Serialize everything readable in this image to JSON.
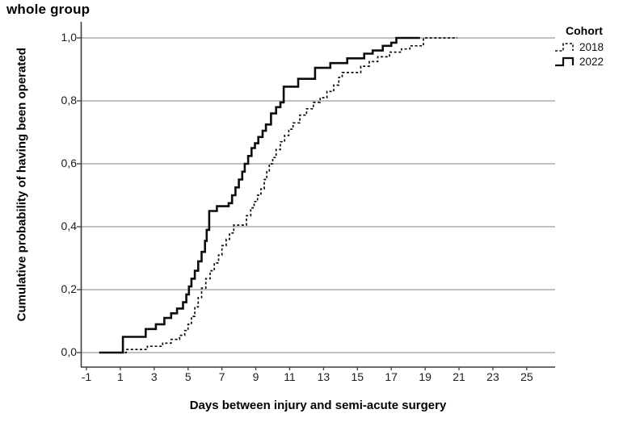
{
  "title": "whole group",
  "legend": {
    "title": "Cohort"
  },
  "chart_data": {
    "type": "line",
    "subtype": "cumulative-step (Kaplan-Meier style)",
    "title": "whole group",
    "xlabel": "Days between injury and semi-acute surgery",
    "ylabel": "Cumulative probability of having been operated",
    "x_ticks": [
      -1,
      1,
      3,
      5,
      7,
      9,
      11,
      13,
      15,
      17,
      19,
      21,
      23,
      25
    ],
    "y_ticks": [
      0,
      0.2,
      0.4,
      0.6,
      0.8,
      1.0
    ],
    "y_tick_labels": [
      "0,0",
      "0,2",
      "0,4",
      "0,6",
      "0,8",
      "1,0"
    ],
    "xlim": [
      -1.35,
      26.7
    ],
    "ylim": [
      0,
      1
    ],
    "grid": "horizontal",
    "legend_position": "top-right",
    "legend_title": "Cohort",
    "colors": {
      "grid": "#9b9b9b",
      "axis": "#3d3d3d",
      "curve": "#0d0d0d"
    },
    "series": [
      {
        "name": "2018",
        "style": "dashed",
        "color": "#0d0d0d",
        "end_day": 20.9,
        "points": [
          [
            1.0,
            0.0
          ],
          [
            1.35,
            0.01
          ],
          [
            2.6,
            0.02
          ],
          [
            3.5,
            0.03
          ],
          [
            4.0,
            0.042
          ],
          [
            4.5,
            0.055
          ],
          [
            4.8,
            0.07
          ],
          [
            5.0,
            0.09
          ],
          [
            5.2,
            0.115
          ],
          [
            5.4,
            0.145
          ],
          [
            5.6,
            0.175
          ],
          [
            5.8,
            0.205
          ],
          [
            6.05,
            0.235
          ],
          [
            6.3,
            0.26
          ],
          [
            6.55,
            0.285
          ],
          [
            6.8,
            0.31
          ],
          [
            7.0,
            0.34
          ],
          [
            7.25,
            0.36
          ],
          [
            7.45,
            0.38
          ],
          [
            7.7,
            0.405
          ],
          [
            8.45,
            0.435
          ],
          [
            8.7,
            0.46
          ],
          [
            8.9,
            0.48
          ],
          [
            9.1,
            0.5
          ],
          [
            9.3,
            0.52
          ],
          [
            9.5,
            0.55
          ],
          [
            9.65,
            0.575
          ],
          [
            9.8,
            0.6
          ],
          [
            10.0,
            0.62
          ],
          [
            10.2,
            0.645
          ],
          [
            10.45,
            0.67
          ],
          [
            10.7,
            0.69
          ],
          [
            10.95,
            0.71
          ],
          [
            11.2,
            0.73
          ],
          [
            11.6,
            0.755
          ],
          [
            12.0,
            0.775
          ],
          [
            12.4,
            0.795
          ],
          [
            12.8,
            0.81
          ],
          [
            13.2,
            0.83
          ],
          [
            13.6,
            0.85
          ],
          [
            13.9,
            0.875
          ],
          [
            14.1,
            0.89
          ],
          [
            15.2,
            0.91
          ],
          [
            15.7,
            0.925
          ],
          [
            16.2,
            0.94
          ],
          [
            16.9,
            0.955
          ],
          [
            17.6,
            0.965
          ],
          [
            18.1,
            0.975
          ],
          [
            18.9,
            1.0
          ]
        ]
      },
      {
        "name": "2022",
        "style": "solid",
        "color": "#0d0d0d",
        "end_day": 18.7,
        "points": [
          [
            -0.25,
            0.0
          ],
          [
            1.15,
            0.05
          ],
          [
            2.5,
            0.075
          ],
          [
            3.1,
            0.09
          ],
          [
            3.6,
            0.11
          ],
          [
            4.0,
            0.125
          ],
          [
            4.35,
            0.14
          ],
          [
            4.7,
            0.16
          ],
          [
            4.9,
            0.185
          ],
          [
            5.05,
            0.21
          ],
          [
            5.2,
            0.235
          ],
          [
            5.4,
            0.26
          ],
          [
            5.6,
            0.29
          ],
          [
            5.8,
            0.32
          ],
          [
            6.0,
            0.355
          ],
          [
            6.1,
            0.39
          ],
          [
            6.25,
            0.45
          ],
          [
            6.7,
            0.465
          ],
          [
            7.4,
            0.475
          ],
          [
            7.6,
            0.5
          ],
          [
            7.8,
            0.525
          ],
          [
            8.0,
            0.55
          ],
          [
            8.2,
            0.575
          ],
          [
            8.35,
            0.6
          ],
          [
            8.55,
            0.625
          ],
          [
            8.75,
            0.65
          ],
          [
            8.95,
            0.665
          ],
          [
            9.15,
            0.685
          ],
          [
            9.4,
            0.705
          ],
          [
            9.6,
            0.725
          ],
          [
            9.9,
            0.76
          ],
          [
            10.2,
            0.78
          ],
          [
            10.45,
            0.795
          ],
          [
            10.65,
            0.845
          ],
          [
            11.5,
            0.87
          ],
          [
            12.5,
            0.905
          ],
          [
            13.4,
            0.92
          ],
          [
            14.4,
            0.935
          ],
          [
            15.4,
            0.95
          ],
          [
            15.9,
            0.96
          ],
          [
            16.5,
            0.975
          ],
          [
            17.0,
            0.985
          ],
          [
            17.3,
            1.0
          ]
        ]
      }
    ]
  }
}
